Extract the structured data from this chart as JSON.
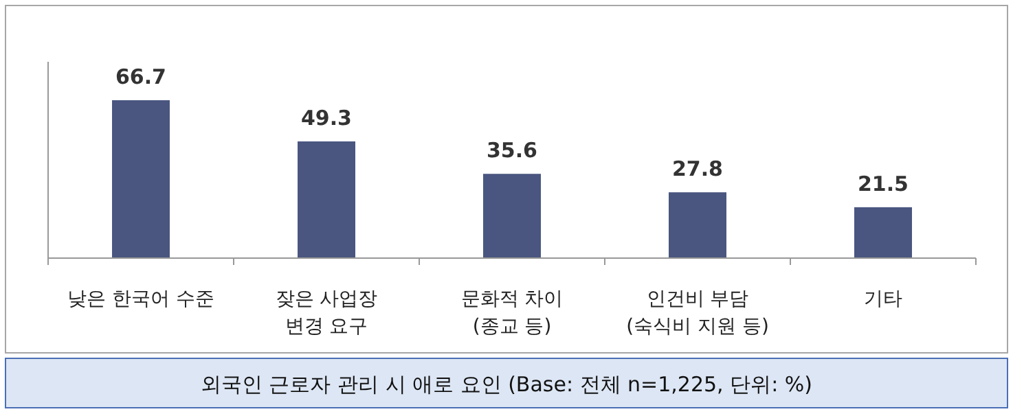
{
  "chart_data": {
    "type": "bar",
    "title": "외국인 근로자 관리 시 애로 요인 (Base: 전체 n=1,225, 단위: %)",
    "categories": [
      "낮은 한국어 수준",
      "잦은 사업장 변경 요구",
      "문화적 차이 (종교 등)",
      "인건비 부담 (숙식비 지원 등)",
      "기타"
    ],
    "values": [
      66.7,
      49.3,
      35.6,
      27.8,
      21.5
    ],
    "color": "#4a5680",
    "data_labels": true
  }
}
